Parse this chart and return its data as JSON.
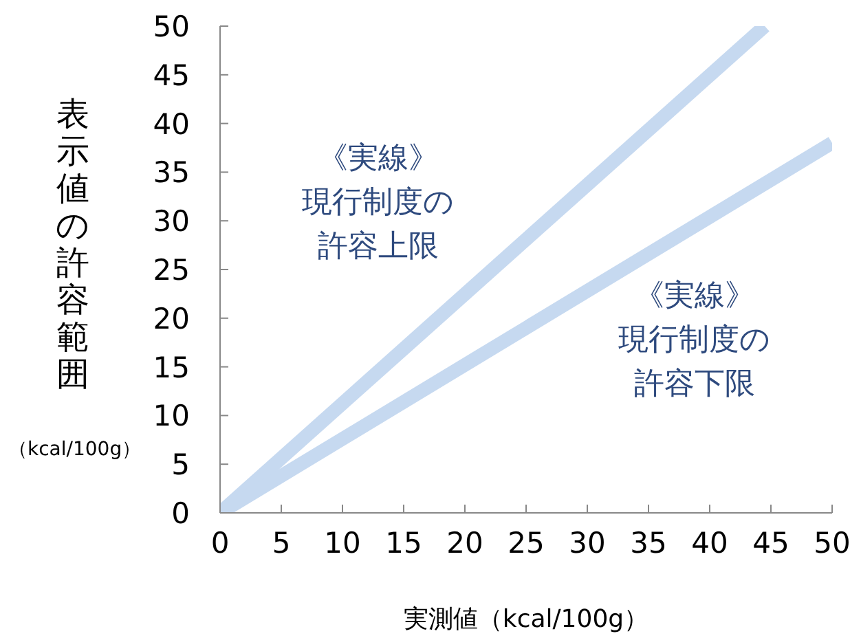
{
  "chart_data": {
    "type": "line",
    "xlabel": "実測値（kcal/100g）",
    "ylabel": "表示値の許容範囲（kcal/100g）",
    "series": [
      {
        "name": "《実線》現行制度の許容上限",
        "color": "#c6d9f0",
        "x": [
          0,
          44.5
        ],
        "values": [
          0,
          50
        ]
      },
      {
        "name": "《実線》現行制度の許容下限",
        "color": "#c6d9f0",
        "x": [
          0,
          50
        ],
        "values": [
          0,
          38
        ]
      }
    ],
    "xlim": [
      0,
      50
    ],
    "xticks": [
      0,
      5,
      10,
      15,
      20,
      25,
      30,
      35,
      40,
      45,
      50
    ],
    "ylim": [
      0,
      50
    ],
    "yticks": [
      0,
      5,
      10,
      15,
      20,
      25,
      30,
      35,
      40,
      45,
      50
    ],
    "grid": false,
    "legend": false,
    "marker": "none",
    "line_style": "solid"
  }
}
